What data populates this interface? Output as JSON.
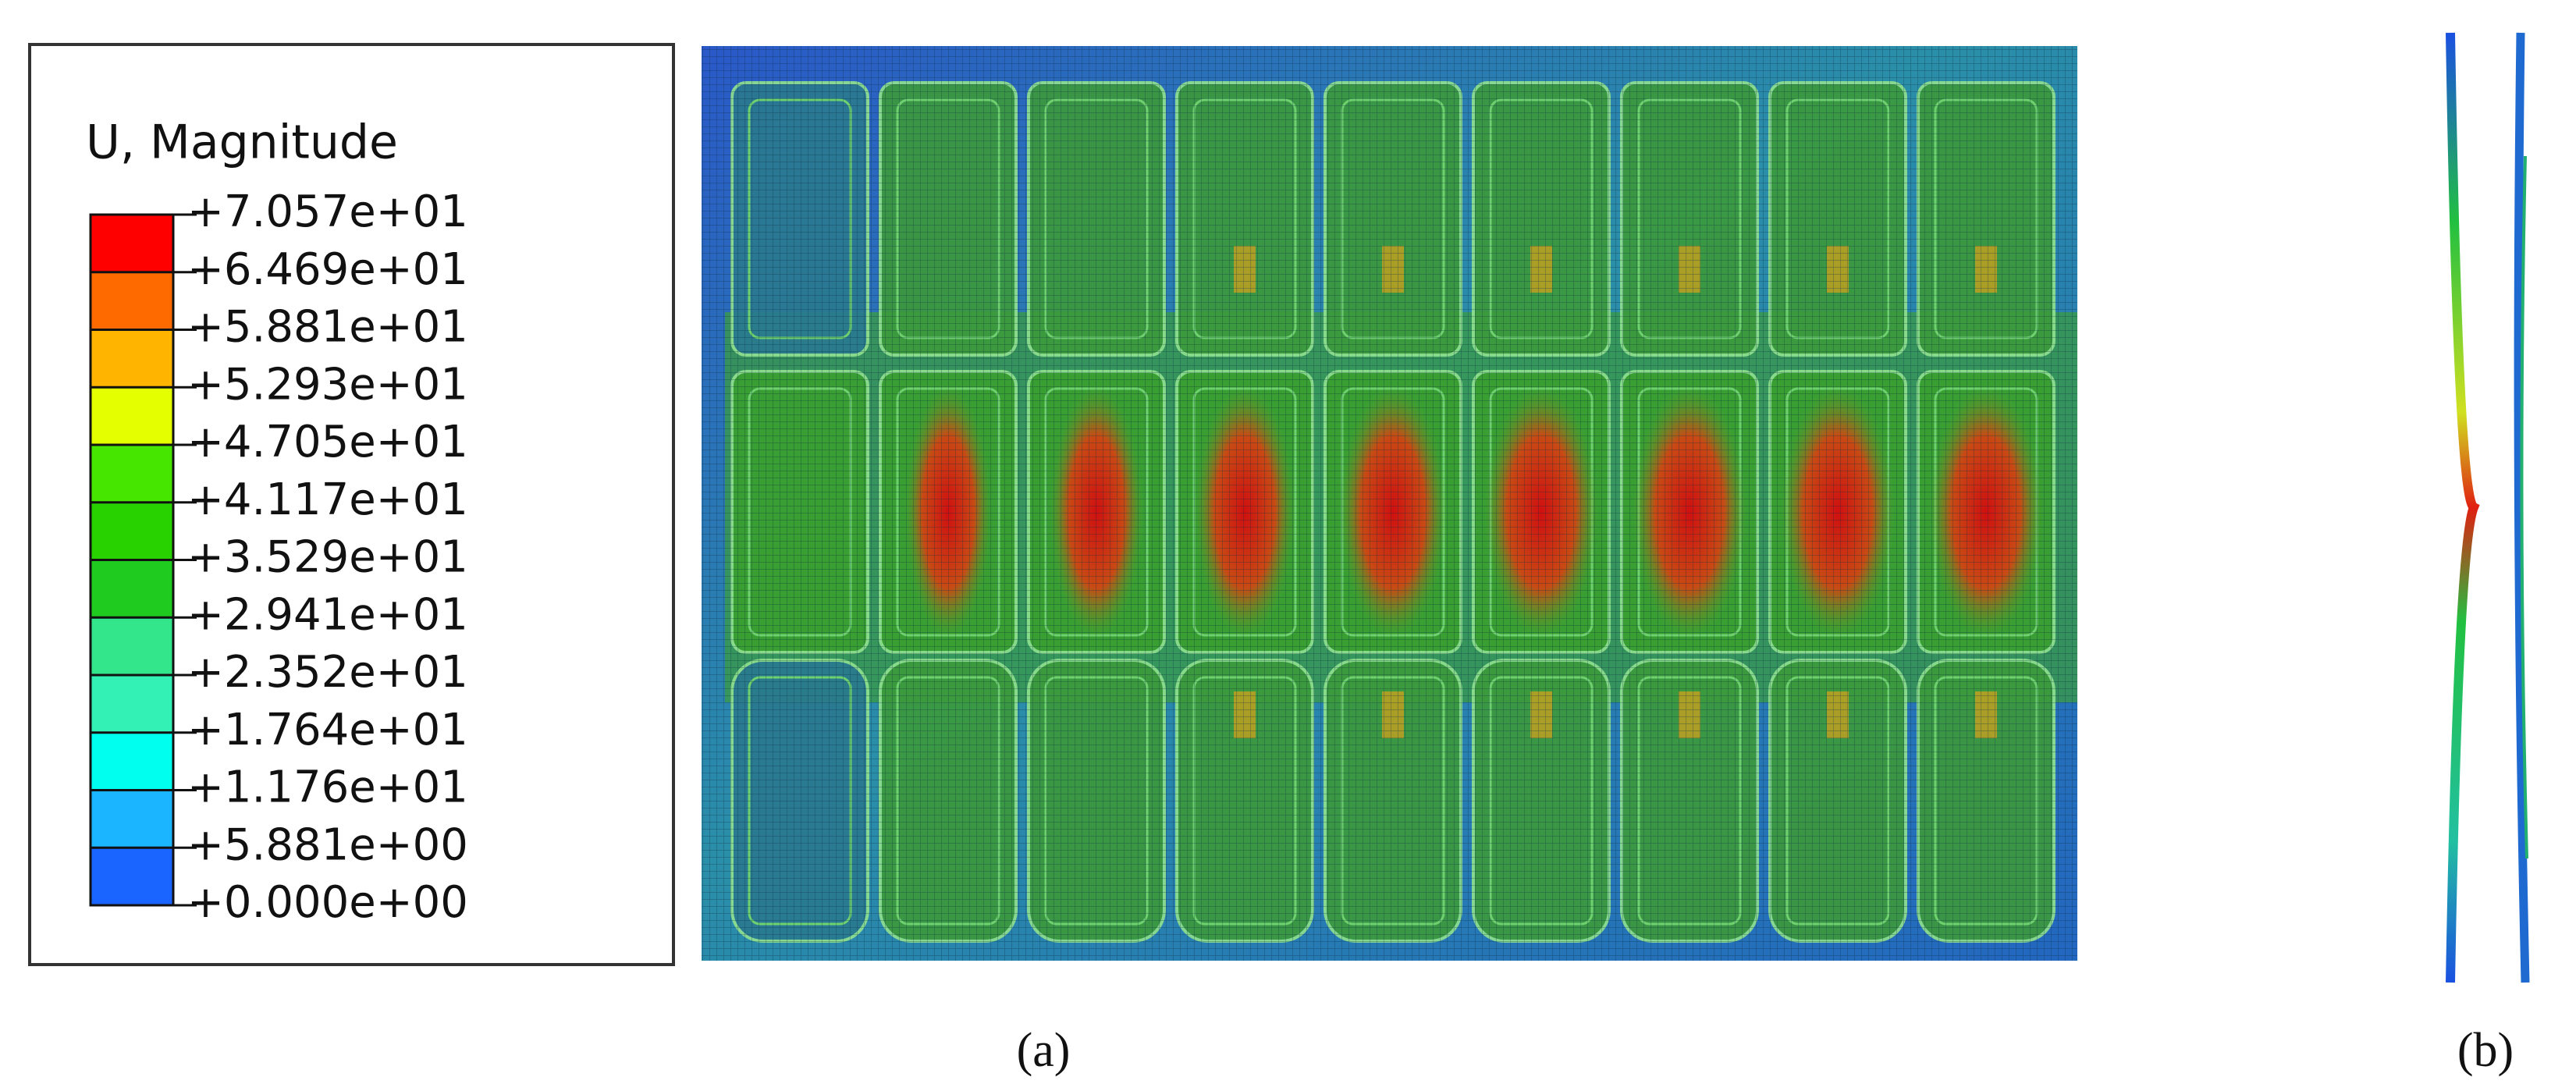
{
  "legend": {
    "title": "U, Magnitude",
    "labels": [
      "+7.057e+01",
      "+6.469e+01",
      "+5.881e+01",
      "+5.293e+01",
      "+4.705e+01",
      "+4.117e+01",
      "+3.529e+01",
      "+2.941e+01",
      "+2.352e+01",
      "+1.764e+01",
      "+1.176e+01",
      "+5.881e+00",
      "+0.000e+00"
    ],
    "colors": [
      "#ff0000",
      "#ff6a00",
      "#ffb400",
      "#e3ff00",
      "#46e600",
      "#28d200",
      "#1ecb1e",
      "#33e68c",
      "#33f0b4",
      "#00ffee",
      "#1ab4ff",
      "#1a64ff",
      "#0000ff"
    ]
  },
  "captions": [
    "(a)",
    "(b)"
  ]
}
